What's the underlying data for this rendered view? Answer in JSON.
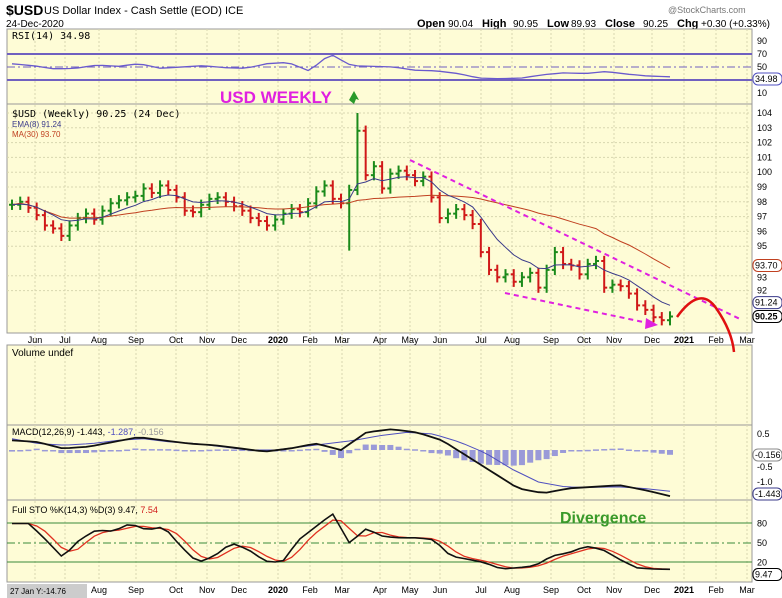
{
  "header": {
    "symbol": "$USD",
    "name": "US Dollar Index - Cash Settle (EOD) ICE",
    "date": "24-Dec-2020",
    "watermark": "@StockCharts.com",
    "ohlc": [
      {
        "k": "Open",
        "v": "90.04"
      },
      {
        "k": "High",
        "v": "90.95"
      },
      {
        "k": "Low",
        "v": "89.93"
      },
      {
        "k": "Close",
        "v": "90.25"
      },
      {
        "k": "Chg",
        "v": "+0.30 (+0.33%)"
      }
    ]
  },
  "annotations": {
    "title": "USD WEEKLY",
    "divergence": "Divergence"
  },
  "panels": {
    "rsi": {
      "label": "RSI(14) 34.98",
      "ticks": [
        "90",
        "70",
        "50",
        "10"
      ],
      "tag": "34.98"
    },
    "price": {
      "label": "$USD (Weekly) 90.25 (24 Dec)",
      "ema_label": "EMA(8) 91.24",
      "ma_label": "MA(30) 93.70",
      "ticks": [
        "104",
        "103",
        "102",
        "101",
        "100",
        "99",
        "98",
        "97",
        "96",
        "95",
        "93",
        "92"
      ],
      "tags": {
        "ma": "93.70",
        "ema": "91.24",
        "close": "90.25"
      }
    },
    "volume": {
      "label": "Volume undef"
    },
    "macd": {
      "label": "MACD(12,26,9)",
      "v1": "-1.443,",
      "v2": "-1.287,",
      "v3": "-0.156",
      "ticks": [
        "0.5",
        "-0.5",
        "-1.0"
      ],
      "tags": {
        "hist": "-0.156",
        "macd": "-1.443"
      }
    },
    "sto": {
      "label": "Full STO %K(14,3) %D(3) 9.47,",
      "v2": "7.54",
      "ticks": [
        "80",
        "50",
        "20"
      ],
      "tag": "9.47"
    }
  },
  "axis": {
    "months": [
      "Jun",
      "Jul",
      "Aug",
      "Sep",
      "Oct",
      "Nov",
      "Dec",
      "2020",
      "Feb",
      "Mar",
      "Apr",
      "May",
      "Jun",
      "Jul",
      "Aug",
      "Sep",
      "Oct",
      "Nov",
      "Dec",
      "2021",
      "Feb",
      "Mar"
    ],
    "bottom_readout": "27 Jan Y:-14.76"
  },
  "colors": {
    "bg": "#fefcd6",
    "up": "#1a8a1a",
    "down": "#d01818",
    "ema": "#3a3a8a",
    "ma": "#c04020",
    "magenta": "#e020e0",
    "rsi": "#6a5acd"
  },
  "chart_data": {
    "type": "ohlc",
    "title": "$USD US Dollar Index - Cash Settle (EOD) ICE, Weekly",
    "ylim": [
      89.5,
      104.5
    ],
    "closes": [
      97.8,
      98.0,
      97.6,
      97.1,
      96.4,
      96.2,
      95.7,
      96.4,
      96.9,
      97.2,
      96.8,
      97.4,
      97.9,
      98.1,
      98.3,
      98.4,
      98.9,
      98.6,
      99.1,
      98.8,
      98.3,
      97.4,
      97.3,
      97.8,
      98.2,
      98.3,
      98.0,
      97.7,
      97.4,
      96.9,
      96.7,
      96.4,
      96.8,
      97.2,
      97.5,
      97.3,
      97.9,
      98.7,
      99.1,
      98.2,
      97.9,
      98.8,
      102.8,
      99.8,
      100.4,
      98.9,
      99.9,
      100.1,
      99.8,
      99.4,
      99.7,
      98.3,
      96.9,
      97.2,
      97.5,
      97.1,
      96.5,
      94.6,
      93.4,
      92.9,
      93.1,
      92.6,
      92.9,
      93.2,
      92.2,
      93.4,
      94.6,
      93.8,
      93.7,
      93.1,
      93.8,
      94.0,
      92.2,
      92.4,
      92.3,
      91.8,
      91.0,
      90.7,
      90.2,
      90.0,
      90.25
    ],
    "overrides": [
      {
        "i": 41,
        "low": 94.7
      },
      {
        "i": 42,
        "high": 104.0
      }
    ],
    "rsi": [
      55,
      52,
      47,
      48,
      53,
      51,
      55,
      48,
      50,
      52,
      49,
      48,
      55,
      57,
      44,
      70,
      52,
      51,
      50,
      45,
      44,
      40,
      33,
      32,
      33,
      38,
      41,
      40,
      43,
      39,
      36,
      35
    ],
    "macd": [
      0.3,
      0.25,
      0.05,
      0.1,
      0.25,
      0.4,
      0.3,
      0.2,
      0.15,
      0.05,
      -0.05,
      0.05,
      0.2,
      0.0,
      0.55,
      0.65,
      0.55,
      0.3,
      -0.2,
      -0.7,
      -1.2,
      -1.35,
      -1.2,
      -1.15,
      -1.1,
      -1.25,
      -1.44
    ],
    "signal": [
      0.35,
      0.2,
      0.15,
      0.2,
      0.3,
      0.35,
      0.25,
      0.2,
      0.1,
      0.0,
      0.0,
      0.1,
      0.2,
      0.3,
      0.45,
      0.55,
      0.5,
      0.25,
      -0.1,
      -0.6,
      -1.0,
      -1.15,
      -1.17,
      -1.15,
      -1.2,
      -1.29
    ],
    "sto_k": [
      80,
      80,
      55,
      28,
      55,
      70,
      68,
      80,
      70,
      75,
      45,
      20,
      30,
      50,
      40,
      22,
      20,
      55,
      75,
      95,
      50,
      72,
      60,
      58,
      58,
      55,
      30,
      25,
      20,
      10,
      12,
      15,
      30,
      35,
      45,
      40,
      25,
      12,
      10,
      9.47
    ]
  }
}
